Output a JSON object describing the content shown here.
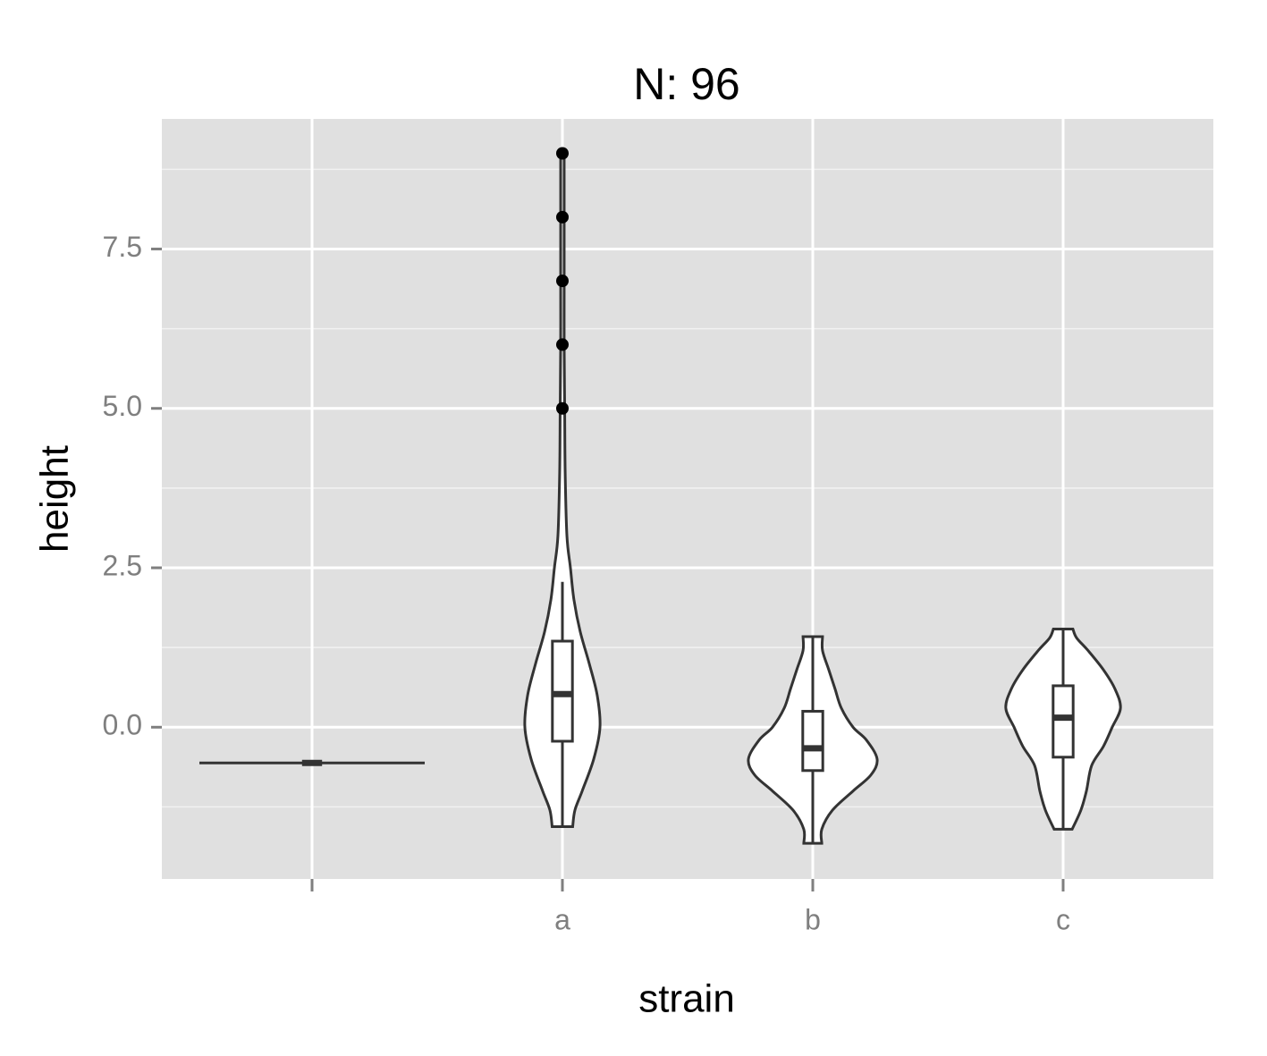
{
  "chart_data": {
    "type": "violin",
    "title": "N: 96",
    "x_label": "strain",
    "y_label": "height",
    "categories": [
      null,
      "a",
      "b",
      "c"
    ],
    "ylim": [
      -2.38,
      9.54
    ],
    "yticks": [
      {
        "value": 0,
        "label": "0.0"
      },
      2.5,
      {
        "value": 5,
        "label": "5.0"
      },
      7.5
    ],
    "y_minor_grid": [
      -1.25,
      1.25,
      3.75,
      6.25,
      8.75
    ],
    "grid": true,
    "violins": [
      {
        "y": [
          -0.56
        ],
        "width": [
          0.45
        ]
      },
      {
        "y": [
          -1.56,
          -1.3,
          -1.0,
          -0.5,
          0,
          0.5,
          1.0,
          1.5,
          2.0,
          2.5,
          3.0,
          4.0,
          5.0,
          6.0,
          7.0,
          8.0,
          9.0
        ],
        "width": [
          0.041,
          0.05,
          0.079,
          0.125,
          0.15,
          0.139,
          0.107,
          0.071,
          0.046,
          0.032,
          0.018,
          0.011,
          0.009,
          0.007,
          0.007,
          0.007,
          0.007
        ]
      },
      {
        "y": [
          -1.82,
          -1.6,
          -1.3,
          -1.0,
          -0.75,
          -0.5,
          -0.2,
          0,
          0.3,
          0.6,
          0.9,
          1.2,
          1.42
        ],
        "width": [
          0.036,
          0.036,
          0.079,
          0.161,
          0.232,
          0.257,
          0.214,
          0.161,
          0.114,
          0.089,
          0.064,
          0.039,
          0.039
        ]
      },
      {
        "y": [
          -1.6,
          -1.3,
          -1.0,
          -0.6,
          -0.3,
          0,
          0.3,
          0.6,
          0.9,
          1.2,
          1.4,
          1.54
        ],
        "width": [
          0.036,
          0.071,
          0.093,
          0.114,
          0.161,
          0.196,
          0.229,
          0.207,
          0.161,
          0.1,
          0.054,
          0.039
        ]
      }
    ],
    "boxes": [
      {
        "whisker_low": -0.56,
        "q1": -0.56,
        "median": -0.56,
        "q3": -0.56,
        "whisker_high": -0.56,
        "outliers": []
      },
      {
        "whisker_low": -1.55,
        "q1": -0.22,
        "median": 0.52,
        "q3": 1.35,
        "whisker_high": 2.28,
        "outliers": [
          5,
          6,
          7,
          8,
          9
        ]
      },
      {
        "whisker_low": -1.82,
        "q1": -0.68,
        "median": -0.33,
        "q3": 0.25,
        "whisker_high": 1.42,
        "outliers": []
      },
      {
        "whisker_low": -1.6,
        "q1": -0.47,
        "median": 0.15,
        "q3": 0.65,
        "whisker_high": 1.54,
        "outliers": []
      }
    ]
  }
}
